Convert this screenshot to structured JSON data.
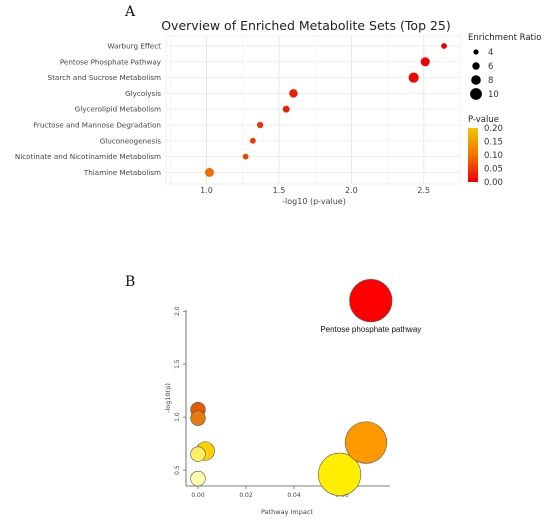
{
  "panels": {
    "a_label": "A",
    "b_label": "B"
  },
  "chart_data": [
    {
      "type": "scatter",
      "title": "Overview of Enriched Metabolite Sets (Top 25)",
      "xlabel": "-log10 (p-value)",
      "ylabel": "",
      "xlim": [
        0.72,
        2.75
      ],
      "x_ticks": [
        "1.0",
        "1.5",
        "2.0",
        "2.5"
      ],
      "x_tick_values": [
        1.0,
        1.5,
        2.0,
        2.5
      ],
      "grid": true,
      "categories": [
        "Warburg Effect",
        "Pentose Phosphate Pathway",
        "Starch and Sucrose Metabolism",
        "Glycolysis",
        "Glycerolipid Metabolism",
        "Fructose and Mannose Degradation",
        "Gluconeogenesis",
        "Nicotinate and Nicotinamide Metabolism",
        "Thiamine Metabolism"
      ],
      "x": [
        2.64,
        2.51,
        2.43,
        1.6,
        1.55,
        1.37,
        1.32,
        1.27,
        1.02
      ],
      "enrichment_ratio": [
        4.5,
        7.5,
        8.5,
        7.0,
        5.5,
        5.0,
        4.5,
        4.5,
        7.5
      ],
      "p_value": [
        0.002,
        0.003,
        0.004,
        0.025,
        0.028,
        0.043,
        0.048,
        0.054,
        0.095
      ],
      "size_legend": {
        "title": "Enrichment Ratio",
        "values": [
          4,
          6,
          8,
          10
        ],
        "labels": [
          "4",
          "6",
          "8",
          "10"
        ]
      },
      "color_legend": {
        "title": "P-value",
        "range": [
          0.0,
          0.2
        ],
        "labels": [
          "0.20",
          "0.15",
          "0.10",
          "0.05",
          "0.00"
        ],
        "colors": [
          "#f5c400",
          "#ee0000"
        ]
      },
      "legend_position": "right"
    },
    {
      "type": "scatter",
      "title": "",
      "xlabel": "Pathway Impact",
      "ylabel": "-log10(p)",
      "xlim": [
        -0.005,
        0.08
      ],
      "ylim": [
        0.35,
        2.2
      ],
      "x_ticks": [
        "0.00",
        "0.02",
        "0.04",
        "0.06"
      ],
      "x_tick_values": [
        0.0,
        0.02,
        0.04,
        0.06
      ],
      "y_ticks": [
        "0.5",
        "1.0",
        "1.5",
        "2.0"
      ],
      "y_tick_values": [
        0.5,
        1.0,
        1.5,
        2.0
      ],
      "points": [
        {
          "x": 0.072,
          "y": 2.1,
          "impact_size": 0.072,
          "color": "#ff0000",
          "label": "Pentose phosphate pathway"
        },
        {
          "x": 0.07,
          "y": 0.76,
          "impact_size": 0.07,
          "color": "#ff9900",
          "label": ""
        },
        {
          "x": 0.059,
          "y": 0.46,
          "impact_size": 0.072,
          "color": "#ffee00",
          "label": ""
        },
        {
          "x": 0.0,
          "y": 1.07,
          "impact_size": 0.014,
          "color": "#e55b00",
          "label": ""
        },
        {
          "x": 0.0,
          "y": 0.99,
          "impact_size": 0.014,
          "color": "#e87b10",
          "label": ""
        },
        {
          "x": 0.003,
          "y": 0.68,
          "impact_size": 0.022,
          "color": "#ffd200",
          "label": ""
        },
        {
          "x": 0.0,
          "y": 0.65,
          "impact_size": 0.014,
          "color": "#fff066",
          "label": ""
        },
        {
          "x": 0.0,
          "y": 0.42,
          "impact_size": 0.014,
          "color": "#ffffb0",
          "label": ""
        }
      ]
    }
  ]
}
